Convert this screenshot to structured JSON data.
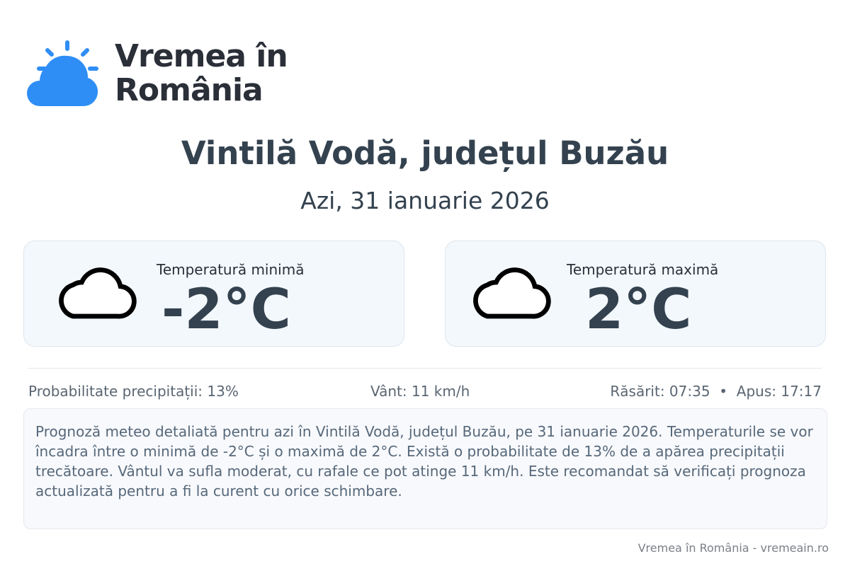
{
  "brand": {
    "name_line1": "Vremea în",
    "name_line2": "România",
    "color": "#2f8ef5"
  },
  "header": {
    "title": "Vintilă Vodă, județul Buzău",
    "subtitle": "Azi, 31 ianuarie 2026"
  },
  "cards": [
    {
      "label": "Temperatură minimă",
      "value": "-2°C",
      "icon": "cloud-icon"
    },
    {
      "label": "Temperatură maximă",
      "value": "2°C",
      "icon": "cloud-icon"
    }
  ],
  "stats": {
    "precipitation": "Probabilitate precipitații: 13%",
    "wind": "Vânt: 11 km/h",
    "sun": "Răsărit: 07:35  •  Apus: 17:17"
  },
  "description": "Prognoză meteo detaliată pentru azi în Vintilă Vodă, județul Buzău, pe 31 ianuarie 2026. Temperaturile se vor încadra între o minimă de -2°C și o maximă de 2°C. Există o probabilitate de 13% de a apărea precipitații trecătoare. Vântul va sufla moderat, cu rafale ce pot atinge 11 km/h. Este recomandat să verificați prognoza actualizată pentru a fi la curent cu orice schimbare.",
  "footer": "Vremea în România - vremeain.ro"
}
